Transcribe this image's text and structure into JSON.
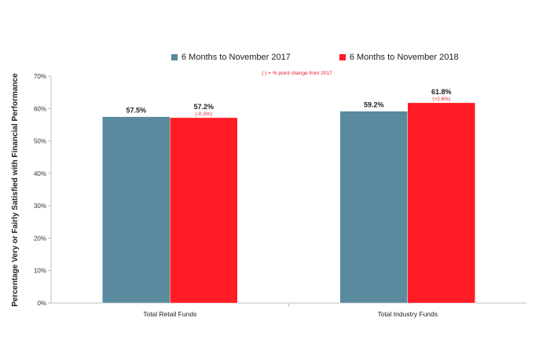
{
  "chart_data": {
    "type": "bar",
    "categories": [
      "Total Retail Funds",
      "Total Industry Funds"
    ],
    "series": [
      {
        "name": "6 Months to November 2017",
        "color": "#5a8a9e",
        "values": [
          57.5,
          59.2
        ],
        "labels": [
          "57.5%",
          "59.2%"
        ]
      },
      {
        "name": "6 Months to November 2018",
        "color": "#ff1c24",
        "values": [
          57.2,
          61.8
        ],
        "labels": [
          "57.2%",
          "61.8%"
        ],
        "change_labels": [
          "(-0.3%)",
          "(+2.6%)"
        ]
      }
    ],
    "ylabel": "Percentage Very or Fairly Satisfied with Financial Performance",
    "xlabel": "",
    "ylim": [
      0,
      70
    ],
    "yticks": [
      "0%",
      "10%",
      "20%",
      "30%",
      "40%",
      "50%",
      "60%",
      "70%"
    ],
    "note": "( ) = % point change from 2017",
    "legend_position": "top",
    "grid": false
  }
}
